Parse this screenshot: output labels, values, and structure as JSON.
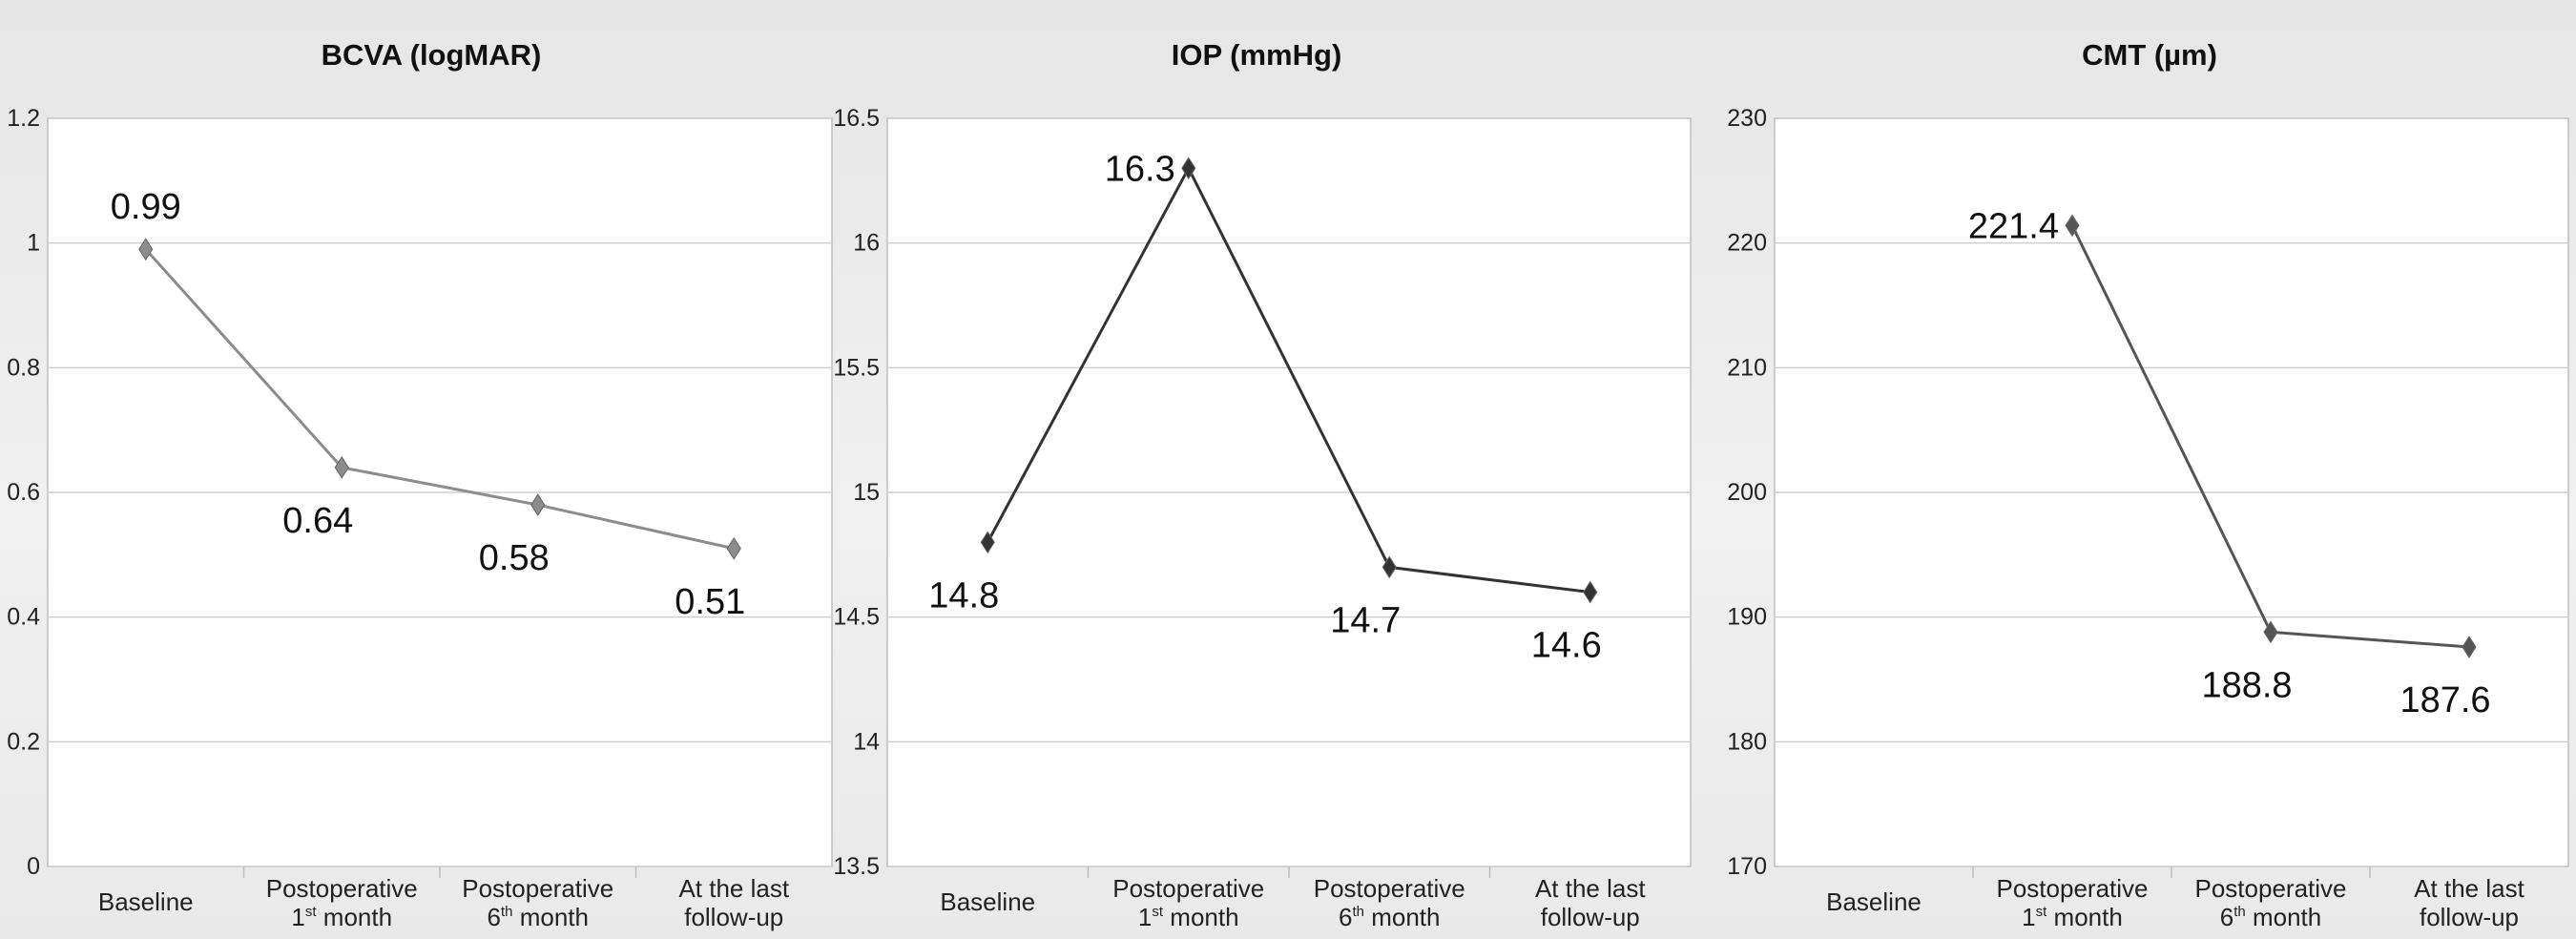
{
  "chart_data": [
    {
      "type": "line",
      "title": "BCVA (logMAR)",
      "categories": [
        {
          "line1": "Baseline",
          "line2": "",
          "sup": "",
          "line2_rest": ""
        },
        {
          "line1": "Postoperative",
          "line2": "1",
          "sup": "st",
          "line2_rest": " month"
        },
        {
          "line1": "Postoperative",
          "line2": "6",
          "sup": "th",
          "line2_rest": " month"
        },
        {
          "line1": "At the last",
          "line2": "follow-up",
          "sup": "",
          "line2_rest": ""
        }
      ],
      "values": [
        0.99,
        0.64,
        0.58,
        0.51
      ],
      "data_labels": [
        "0.99",
        "0.64",
        "0.58",
        "0.51"
      ],
      "label_positions": [
        "above",
        "below",
        "below",
        "below"
      ],
      "ylim": [
        0,
        1.2
      ],
      "yticks": [
        0,
        0.2,
        0.4,
        0.6,
        0.8,
        1,
        1.2
      ],
      "ytick_labels": [
        "0",
        "0.2",
        "0.4",
        "0.6",
        "0.8",
        "1",
        "1.2"
      ],
      "grid": true,
      "line_color": "#8c8c8c"
    },
    {
      "type": "line",
      "title": "IOP (mmHg)",
      "categories": [
        {
          "line1": "Baseline",
          "line2": "",
          "sup": "",
          "line2_rest": ""
        },
        {
          "line1": "Postoperative",
          "line2": "1",
          "sup": "st",
          "line2_rest": " month"
        },
        {
          "line1": "Postoperative",
          "line2": "6",
          "sup": "th",
          "line2_rest": " month"
        },
        {
          "line1": "At the last",
          "line2": "follow-up",
          "sup": "",
          "line2_rest": ""
        }
      ],
      "values": [
        14.8,
        16.3,
        14.7,
        14.6
      ],
      "data_labels": [
        "14.8",
        "16.3",
        "14.7",
        "14.6"
      ],
      "label_positions": [
        "below",
        "left",
        "below",
        "below"
      ],
      "ylim": [
        13.5,
        16.5
      ],
      "yticks": [
        13.5,
        14,
        14.5,
        15,
        15.5,
        16,
        16.5
      ],
      "ytick_labels": [
        "13.5",
        "14",
        "14.5",
        "15",
        "15.5",
        "16",
        "16.5"
      ],
      "grid": true,
      "line_color": "#333333"
    },
    {
      "type": "line",
      "title": "CMT (µm)",
      "categories": [
        {
          "line1": "Baseline",
          "line2": "",
          "sup": "",
          "line2_rest": ""
        },
        {
          "line1": "Postoperative",
          "line2": "1",
          "sup": "st",
          "line2_rest": " month"
        },
        {
          "line1": "Postoperative",
          "line2": "6",
          "sup": "th",
          "line2_rest": " month"
        },
        {
          "line1": "At the last",
          "line2": "follow-up",
          "sup": "",
          "line2_rest": ""
        }
      ],
      "values": [
        null,
        221.4,
        188.8,
        187.6
      ],
      "data_labels": [
        "",
        "221.4",
        "188.8",
        "187.6"
      ],
      "label_positions": [
        "none",
        "left",
        "below",
        "below"
      ],
      "ylim": [
        170,
        230
      ],
      "yticks": [
        170,
        180,
        190,
        200,
        210,
        220,
        230
      ],
      "ytick_labels": [
        "170",
        "180",
        "190",
        "200",
        "210",
        "220",
        "230"
      ],
      "grid": true,
      "line_color": "#555555"
    }
  ]
}
